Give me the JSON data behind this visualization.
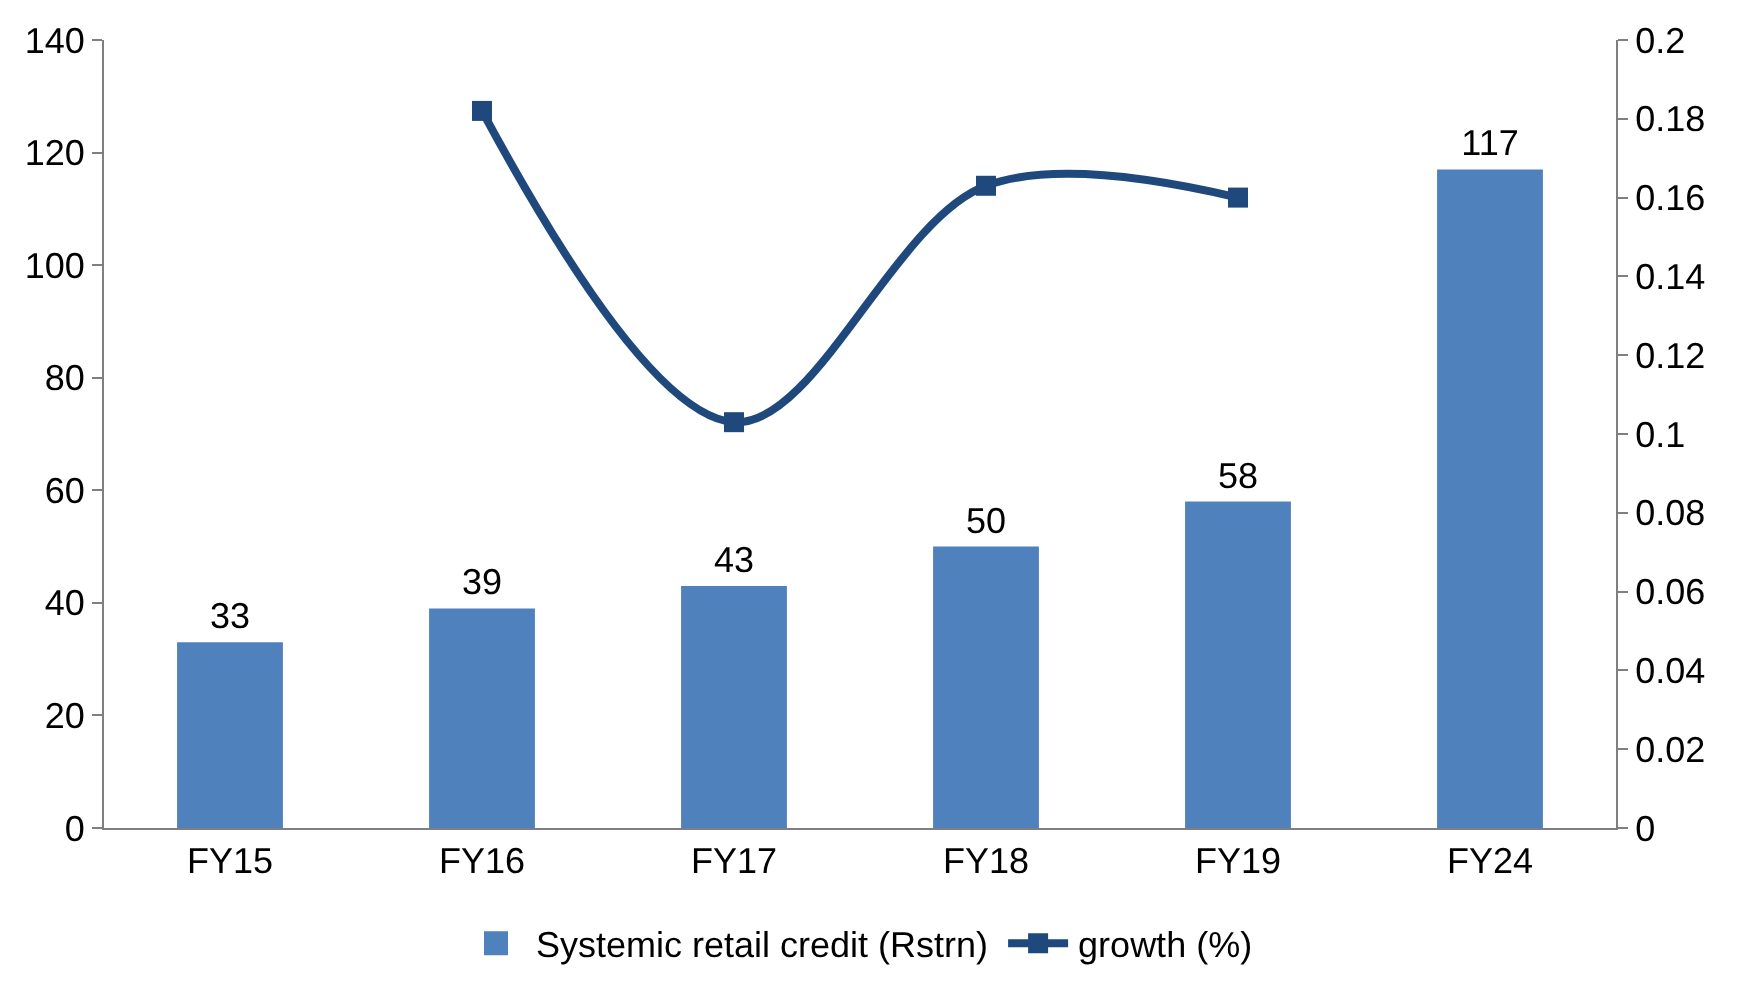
{
  "chart_data": {
    "type": "bar",
    "categories": [
      "FY15",
      "FY16",
      "FY17",
      "FY18",
      "FY19",
      "FY24"
    ],
    "series": [
      {
        "name": "Systemic retail credit (Rstrn)",
        "color": "#4f81bd",
        "values": [
          33,
          39,
          43,
          50,
          58,
          117
        ],
        "value_labels": [
          "33",
          "39",
          "43",
          "50",
          "58",
          "117"
        ]
      },
      {
        "name": "growth (%)",
        "type": "line",
        "axis": "y2",
        "color": "#1f497d",
        "marker": "square",
        "values": [
          null,
          0.182,
          0.103,
          0.163,
          0.16,
          null
        ]
      }
    ],
    "ylim": [
      0,
      140
    ],
    "yticks": [
      0,
      20,
      40,
      60,
      80,
      100,
      120,
      140
    ],
    "y2lim": [
      0,
      0.2
    ],
    "y2ticks": [
      0,
      0.02,
      0.04,
      0.06,
      0.08,
      0.1,
      0.12,
      0.14,
      0.16,
      0.18,
      0.2
    ],
    "grid": false,
    "legend": "bottom"
  }
}
